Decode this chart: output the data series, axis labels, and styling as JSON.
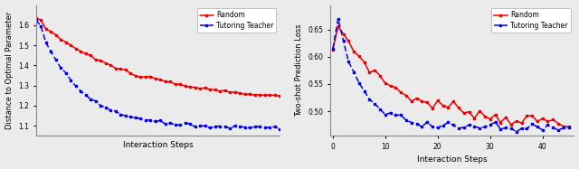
{
  "left": {
    "ylabel": "Distance to Optimal Parameter",
    "xlabel": "Interaction Steps",
    "ylim": [
      1.05,
      1.7
    ],
    "xlim": [
      0,
      49
    ],
    "xticks": [],
    "yticks": [
      1.1,
      1.2,
      1.3,
      1.4,
      1.5,
      1.6
    ],
    "legend_loc": "upper right"
  },
  "right": {
    "ylabel": "Two-shot Prediction Loss",
    "xlabel": "Interaction Steps",
    "ylim": [
      0.455,
      0.695
    ],
    "xlim": [
      -0.5,
      46
    ],
    "xticks": [
      0,
      10,
      20,
      30,
      40
    ],
    "yticks": [
      0.5,
      0.55,
      0.6,
      0.65
    ],
    "legend_loc": "upper right"
  },
  "random_color": "#ee0000",
  "tutor_color": "#0000ee",
  "legend_labels": [
    "Random",
    "Tutoring Teacher"
  ],
  "bg_color": "#ebebeb"
}
